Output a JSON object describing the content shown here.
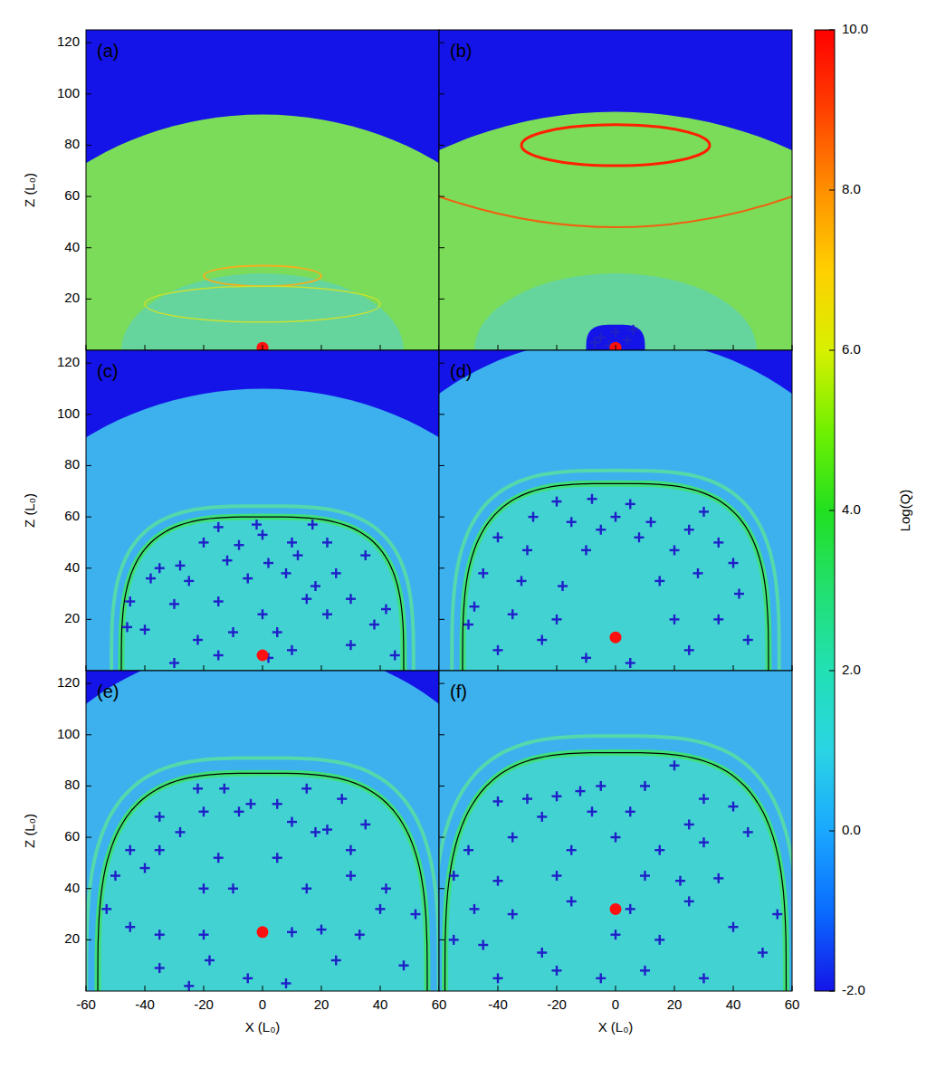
{
  "chart_data": [
    {
      "type": "scatter",
      "panel_label": "(a)",
      "xlim": [
        -60,
        60
      ],
      "ylim": [
        0,
        125
      ],
      "xticks": [
        -60,
        -40,
        -20,
        0,
        20,
        40,
        60
      ],
      "yticks": [
        20,
        40,
        60,
        80,
        100,
        120
      ],
      "tick_labels": "y",
      "y_label": "Z (L₀)",
      "domain_top": [
        92,
        73
      ],
      "bubble": null,
      "series": [
        {
          "color": "#ff1010",
          "marker": "circle",
          "x": [
            0
          ],
          "values": [
            1
          ]
        }
      ]
    },
    {
      "type": "scatter",
      "panel_label": "(b)",
      "xlim": [
        -60,
        60
      ],
      "ylim": [
        0,
        125
      ],
      "xticks": [
        -40,
        -20,
        0,
        20,
        40,
        60
      ],
      "yticks": [
        20,
        40,
        60,
        80,
        100,
        120
      ],
      "tick_labels": false,
      "domain_top": [
        93,
        78
      ],
      "bubble": [
        10,
        10
      ],
      "series": [
        {
          "color": "#ff1010",
          "marker": "circle",
          "x": [
            0
          ],
          "values": [
            1
          ]
        },
        {
          "color": "#2020c8",
          "marker": "plus",
          "x": [
            -5,
            0,
            4,
            -2,
            6,
            -7
          ],
          "values": [
            5,
            7,
            4,
            2,
            8,
            3
          ]
        }
      ]
    },
    {
      "type": "scatter",
      "panel_label": "(c)",
      "xlim": [
        -60,
        60
      ],
      "ylim": [
        0,
        125
      ],
      "xticks": [
        -60,
        -40,
        -20,
        0,
        20,
        40,
        60
      ],
      "yticks": [
        20,
        40,
        60,
        80,
        100,
        120
      ],
      "tick_labels": "y",
      "y_label": "Z (L₀)",
      "domain_top": [
        110,
        91
      ],
      "bubble": [
        48,
        60
      ],
      "series": [
        {
          "color": "#ff1010",
          "marker": "circle",
          "x": [
            0
          ],
          "values": [
            6
          ]
        },
        {
          "color": "#2020c8",
          "marker": "plus",
          "x": [
            -15,
            -2,
            0,
            17,
            -20,
            -8,
            10,
            22,
            -35,
            -28,
            -12,
            2,
            12,
            25,
            -38,
            -25,
            -5,
            8,
            18,
            -45,
            -30,
            -15,
            0,
            15,
            30,
            42,
            -40,
            -22,
            -10,
            5,
            22,
            38,
            -30,
            -15,
            2,
            10,
            30,
            45,
            -46,
            35
          ],
          "values": [
            56,
            57,
            53,
            57,
            50,
            49,
            50,
            50,
            40,
            41,
            43,
            42,
            45,
            38,
            36,
            35,
            36,
            38,
            33,
            27,
            26,
            27,
            22,
            28,
            28,
            24,
            16,
            12,
            15,
            15,
            22,
            18,
            3,
            6,
            5,
            8,
            10,
            6,
            17,
            45
          ]
        }
      ]
    },
    {
      "type": "scatter",
      "panel_label": "(d)",
      "xlim": [
        -60,
        60
      ],
      "ylim": [
        0,
        125
      ],
      "xticks": [
        -40,
        -20,
        0,
        20,
        40,
        60
      ],
      "yticks": [
        20,
        40,
        60,
        80,
        100,
        120
      ],
      "tick_labels": false,
      "domain_top": [
        130,
        108
      ],
      "bubble": [
        52,
        73
      ],
      "series": [
        {
          "color": "#ff1010",
          "marker": "circle",
          "x": [
            0
          ],
          "values": [
            13
          ]
        },
        {
          "color": "#2020c8",
          "marker": "plus",
          "x": [
            -20,
            -8,
            5,
            -28,
            -15,
            0,
            12,
            25,
            -40,
            -30,
            -10,
            8,
            20,
            35,
            -45,
            -32,
            -18,
            15,
            28,
            42,
            -48,
            -35,
            -20,
            20,
            35,
            -40,
            -25,
            -10,
            5,
            25,
            45,
            -50,
            40,
            -5,
            30
          ],
          "values": [
            66,
            67,
            65,
            60,
            58,
            60,
            58,
            55,
            52,
            47,
            47,
            52,
            47,
            50,
            38,
            35,
            33,
            35,
            38,
            30,
            25,
            22,
            20,
            20,
            20,
            8,
            12,
            5,
            3,
            8,
            12,
            18,
            42,
            55,
            62
          ]
        }
      ]
    },
    {
      "type": "scatter",
      "panel_label": "(e)",
      "xlim": [
        -60,
        60
      ],
      "ylim": [
        0,
        125
      ],
      "xticks": [
        -60,
        -40,
        -20,
        0,
        20,
        40,
        60
      ],
      "yticks": [
        20,
        40,
        60,
        80,
        100,
        120
      ],
      "x_label": "X (L₀)",
      "y_label": "Z (L₀)",
      "domain_top": [
        135,
        112
      ],
      "bubble": [
        56,
        85
      ],
      "series": [
        {
          "color": "#ff1010",
          "marker": "circle",
          "x": [
            0
          ],
          "values": [
            23
          ]
        },
        {
          "color": "#2020c8",
          "marker": "plus",
          "x": [
            -22,
            -13,
            -4,
            5,
            15,
            27,
            -35,
            -20,
            -8,
            10,
            22,
            35,
            -45,
            -35,
            -28,
            -15,
            5,
            18,
            30,
            -50,
            -40,
            -20,
            -10,
            15,
            30,
            42,
            -53,
            -35,
            -20,
            10,
            20,
            40,
            52,
            -45,
            -35,
            -18,
            -5,
            8,
            25,
            48,
            -25,
            33
          ],
          "values": [
            79,
            79,
            73,
            73,
            79,
            75,
            68,
            70,
            70,
            66,
            63,
            65,
            55,
            55,
            62,
            52,
            52,
            62,
            55,
            45,
            48,
            40,
            40,
            40,
            45,
            40,
            32,
            22,
            22,
            23,
            24,
            32,
            30,
            25,
            9,
            12,
            5,
            3,
            12,
            10,
            2,
            22
          ]
        }
      ]
    },
    {
      "type": "scatter",
      "panel_label": "(f)",
      "xlim": [
        -60,
        60
      ],
      "ylim": [
        0,
        125
      ],
      "xticks": [
        -40,
        -20,
        0,
        20,
        40,
        60
      ],
      "yticks": [
        20,
        40,
        60,
        80,
        100,
        120
      ],
      "tick_labels": "x",
      "x_label": "X (L₀)",
      "domain_top": null,
      "bubble": [
        58,
        93
      ],
      "series": [
        {
          "color": "#ff1010",
          "marker": "circle",
          "x": [
            0
          ],
          "values": [
            32
          ]
        },
        {
          "color": "#2020c8",
          "marker": "plus",
          "x": [
            -30,
            -20,
            -12,
            -5,
            10,
            20,
            30,
            -40,
            -25,
            -8,
            5,
            25,
            40,
            -50,
            -35,
            -15,
            0,
            15,
            30,
            45,
            -55,
            -40,
            -20,
            10,
            22,
            35,
            -48,
            -35,
            -15,
            5,
            25,
            55,
            -55,
            -45,
            -25,
            0,
            15,
            40,
            -40,
            -20,
            -5,
            10,
            30,
            50
          ],
          "values": [
            75,
            76,
            78,
            80,
            80,
            88,
            75,
            74,
            68,
            70,
            70,
            65,
            72,
            55,
            60,
            55,
            60,
            55,
            58,
            62,
            45,
            43,
            45,
            45,
            43,
            44,
            32,
            30,
            35,
            32,
            35,
            30,
            20,
            18,
            15,
            22,
            20,
            25,
            5,
            8,
            5,
            8,
            5,
            15
          ]
        }
      ]
    }
  ],
  "colorbar": {
    "label": "Log(Q)",
    "range": [
      -2,
      10
    ],
    "ticks": [
      {
        "value": 10,
        "label": "10.0"
      },
      {
        "value": 8,
        "label": "8.0"
      },
      {
        "value": 6,
        "label": "6.0"
      },
      {
        "value": 4,
        "label": "4.0"
      },
      {
        "value": 2,
        "label": "2.0"
      },
      {
        "value": 0,
        "label": "0.0"
      },
      {
        "value": -2,
        "label": "-2.0"
      }
    ]
  }
}
